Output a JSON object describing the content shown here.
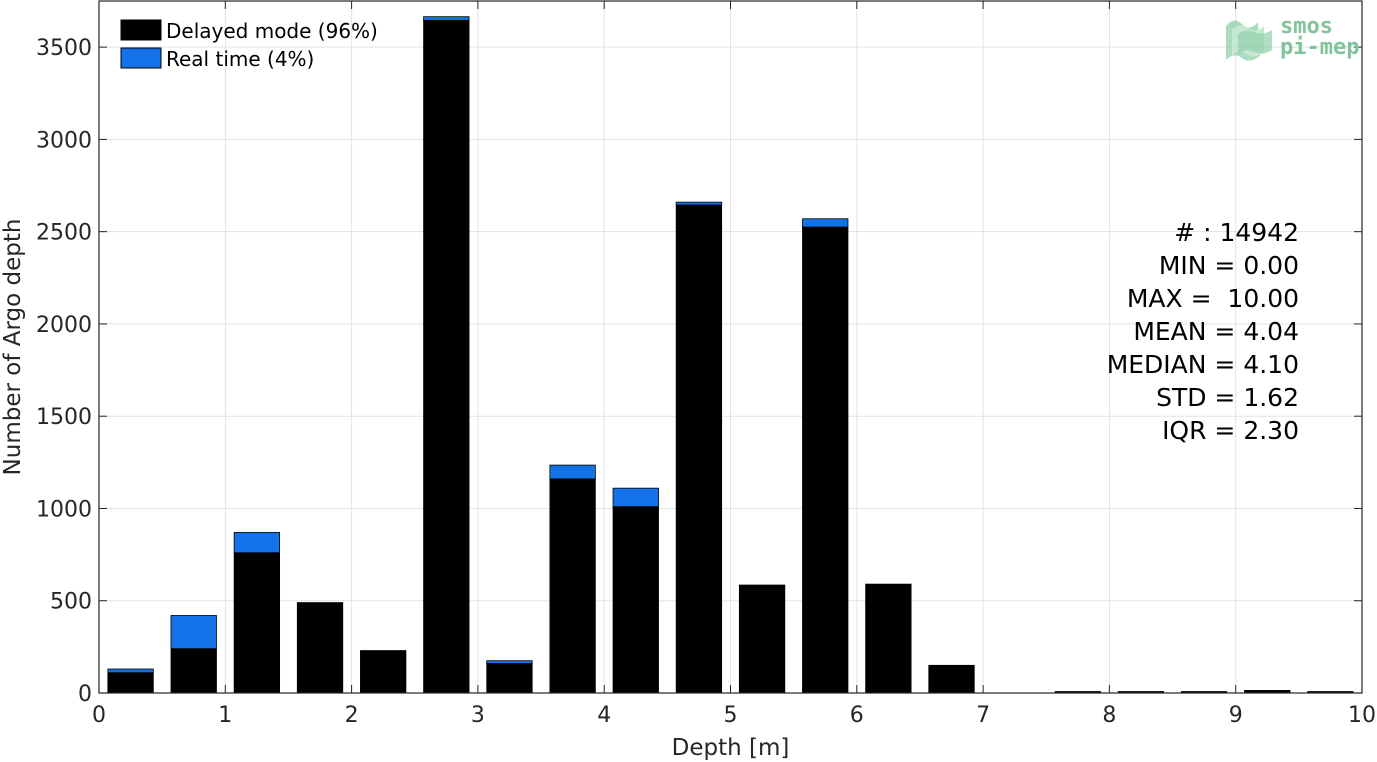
{
  "chart_data": {
    "type": "bar",
    "stacked": true,
    "xlabel": "Depth [m]",
    "ylabel": "Number of Argo depth",
    "xlim": [
      0,
      10
    ],
    "ylim": [
      0,
      3750
    ],
    "xticks": [
      0,
      1,
      2,
      3,
      4,
      5,
      6,
      7,
      8,
      9,
      10
    ],
    "yticks": [
      0,
      500,
      1000,
      1500,
      2000,
      2500,
      3000,
      3500
    ],
    "grid": true,
    "legend_position": "top-left",
    "bin_centers": [
      0.25,
      0.75,
      1.25,
      1.75,
      2.25,
      2.75,
      3.25,
      3.75,
      4.25,
      4.75,
      5.25,
      5.75,
      6.25,
      6.75,
      7.25,
      7.75,
      8.25,
      8.75,
      9.25,
      9.75
    ],
    "series": [
      {
        "name": "Delayed mode (96%)",
        "color": "#000000",
        "values": [
          110,
          240,
          760,
          490,
          230,
          3645,
          160,
          1160,
          1010,
          2645,
          585,
          2525,
          590,
          150,
          0,
          8,
          8,
          8,
          14,
          8
        ]
      },
      {
        "name": "Real time (4%)",
        "color": "#1372e8",
        "values": [
          20,
          180,
          110,
          0,
          0,
          20,
          15,
          75,
          100,
          15,
          0,
          45,
          0,
          0,
          0,
          0,
          0,
          0,
          0,
          0
        ]
      }
    ],
    "annotations": {
      "count": "# : 14942",
      "min": "MIN = 0.00",
      "max": "MAX =  10.00",
      "mean": "MEAN = 4.04",
      "median": "MEDIAN = 4.10",
      "std": "STD = 1.62",
      "iqr": "IQR = 2.30"
    }
  },
  "logo": {
    "line1": "smos",
    "line2": "pi-mep",
    "color": "#7fc49a"
  }
}
